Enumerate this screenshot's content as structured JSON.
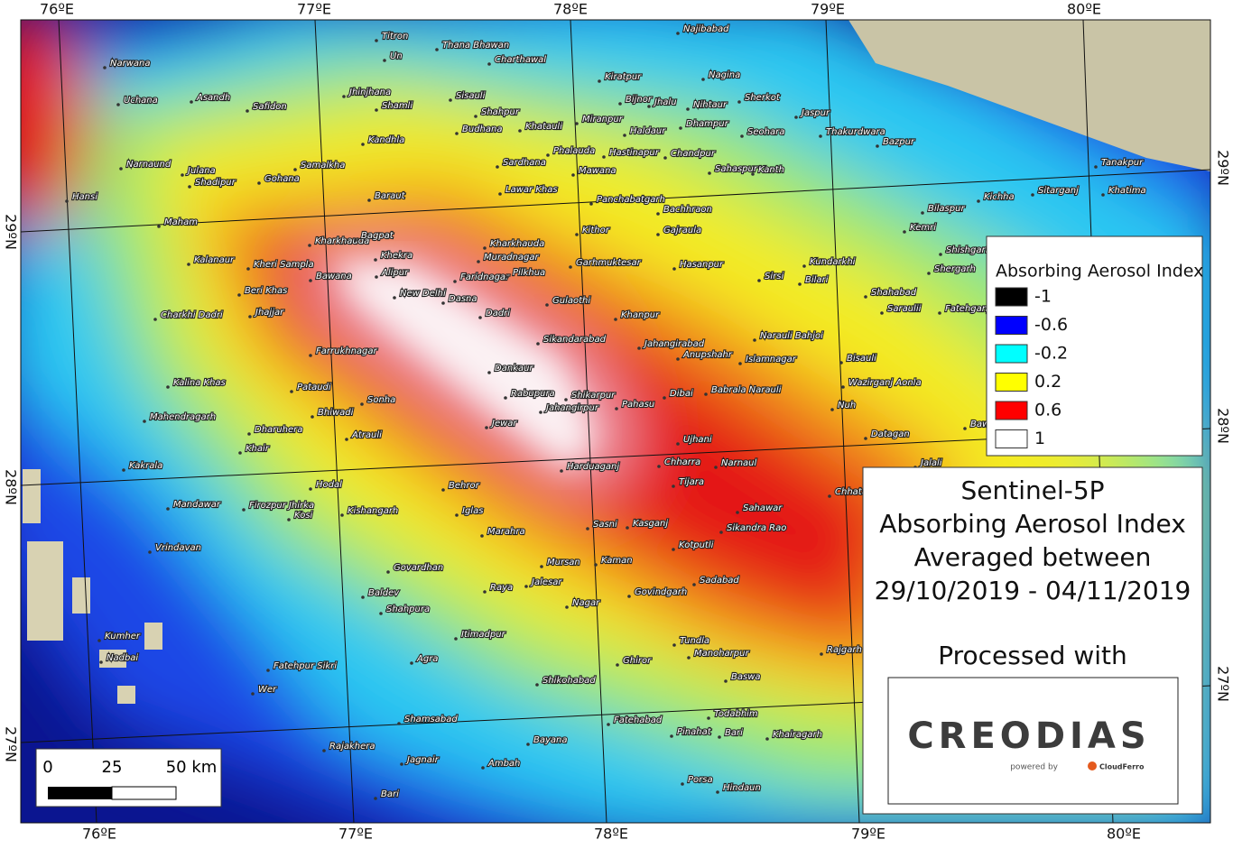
{
  "graticule": {
    "top": [
      "76ºE",
      "77ºE",
      "78ºE",
      "79ºE",
      "80ºE"
    ],
    "bottom": [
      "76ºE",
      "77ºE",
      "78ºE",
      "79ºE",
      "80ºE"
    ],
    "left": [
      "29ºN",
      "28ºN",
      "27ºN"
    ],
    "right": [
      "29ºN",
      "28ºN",
      "27ºN"
    ]
  },
  "legend": {
    "title": "Absorbing Aerosol Index",
    "items": [
      {
        "label": -1,
        "color": "#000000"
      },
      {
        "label": -0.6,
        "color": "#0000ff"
      },
      {
        "label": -0.2,
        "color": "#00ffff"
      },
      {
        "label": 0.2,
        "color": "#ffff00"
      },
      {
        "label": 0.6,
        "color": "#ff0000"
      },
      {
        "label": 1,
        "color": "#ffffff"
      }
    ]
  },
  "info": {
    "lines": [
      "Sentinel-5P",
      "Absorbing Aerosol Index",
      "Averaged between",
      "29/10/2019 - 04/11/2019"
    ],
    "processed": "Processed with"
  },
  "logo": {
    "name": "CREODIAS",
    "powered": "powered by",
    "partner": "CloudFerro"
  },
  "scale_bar": {
    "labels": [
      0,
      25,
      "50 km"
    ]
  },
  "cities": [
    "Narwana",
    "Uchana",
    "Asandh",
    "Safidon",
    "Jhinjhana",
    "Titron",
    "Un",
    "Thana Bhawan",
    "Charthawal",
    "Shamli",
    "Sisauli",
    "Shahpur",
    "Budhana",
    "Khatauli",
    "Miranpur",
    "Najibabad",
    "Kiratpur",
    "Nagina",
    "Bijnor",
    "Jhalu",
    "Nihtaur",
    "Sherkot",
    "Dhampur",
    "Jaspur",
    "Haldaur",
    "Seohara",
    "Thakurdwara",
    "Bazpur",
    "Kandhla",
    "Phalauda",
    "Hastinapur",
    "Chandpur",
    "Narnaund",
    "Julana",
    "Samalkha",
    "Sardhana",
    "Mawana",
    "Sahaspur",
    "Kanth",
    "Shadipur",
    "Gohana",
    "Lawar Khas",
    "Baraut",
    "Hansi",
    "Panchabatgarh",
    "Bachhraon",
    "Kichha",
    "Sitarganj",
    "Khatima",
    "Tanakpur",
    "Bilaspur",
    "Kemri",
    "Maham",
    "Kharkhauda",
    "Bagpat",
    "Kithor",
    "Gajraula",
    "Kharkhauda",
    "Khekra",
    "Muradnagar",
    "Kalanaur",
    "Kheri Sampla",
    "Alipur",
    "Bawana",
    "Faridnagar",
    "Pilkhua",
    "Garhmuktesar",
    "Hasanpur",
    "Sirsi",
    "Kundarkhi",
    "Bilari",
    "Shishgarh",
    "Shergarh",
    "New Delhi",
    "Beri Khas",
    "Dasna",
    "Gulaothi",
    "Shahabad",
    "Charkhi Dadri",
    "Jhajjar",
    "Dadri",
    "Khanpur",
    "Saraulii",
    "Fatehganj West",
    "Sikandarabad",
    "Jahangirabad",
    "Narauli Bahjoi",
    "Farrukhnagar",
    "Anupshahr",
    "Islamnagar",
    "Bisauli",
    "Dankaur",
    "Kalina Khas",
    "Pataudi",
    "Rabupura",
    "Shikarpur",
    "Sonha",
    "Pahasu",
    "Dibai",
    "Babrala Narauli",
    "Wazirganj Aonla",
    "Jahangirpur",
    "Bhiwadi",
    "Mahendragarh",
    "Jewar",
    "Dharuhera",
    "Nuh",
    "Atrauli",
    "Ujhani",
    "Datagan",
    "Bawal",
    "Khair",
    "Harduaganj",
    "Chharra",
    "Narnaul",
    "Kakrala",
    "Jalali",
    "Tijara",
    "Hodal",
    "Behror",
    "Mandawar",
    "Firozpur Jhirka",
    "Kishangarh",
    "Kosi",
    "Iglas",
    "Sasni",
    "Kasganj",
    "Sahawar",
    "Chhata",
    "Marahra",
    "Sikandra Rao",
    "Kotputli",
    "Vrindavan",
    "Mursan",
    "Kaman",
    "Govardhan",
    "Raya",
    "Jalesar",
    "Sadabad",
    "Govindgarh",
    "Baldev",
    "Nagar",
    "Shahpura",
    "Kumher",
    "Itimadpur",
    "Tundla",
    "Manoharpur",
    "Nadbai",
    "Agra",
    "Ghiror",
    "Rajgarh",
    "Fatehpur Sikri",
    "Shikohabad",
    "Baswa",
    "Wer",
    "Shamsabad",
    "Fatehabad",
    "Todabhim",
    "Rajakhera",
    "Pinahat",
    "Bari",
    "Khairagarh",
    "Bayana",
    "Jagnair",
    "Ambah",
    "Porsa",
    "Hindaun",
    "Bari"
  ]
}
